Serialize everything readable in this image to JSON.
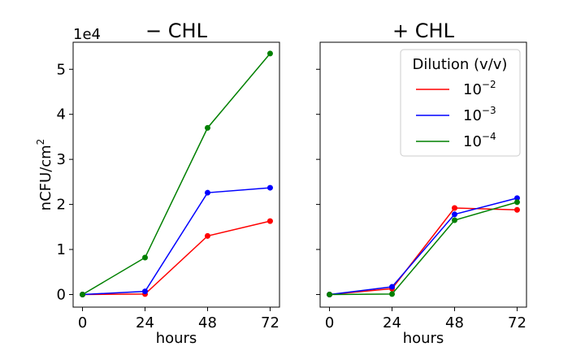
{
  "chart_data": [
    {
      "type": "line",
      "title": "− CHL",
      "xlabel": "hours",
      "ylabel": "nCFU/cm",
      "ylabel_superscript": "2",
      "offset_label": "1e4",
      "x": [
        0,
        24,
        48,
        72
      ],
      "xticks": [
        "0",
        "24",
        "48",
        "72"
      ],
      "yticks": [
        "0",
        "1",
        "2",
        "3",
        "4",
        "5"
      ],
      "ylim": [
        -0.28,
        5.6
      ],
      "grid": false,
      "series": [
        {
          "color": "#ff0000",
          "values": [
            0,
            0.01,
            1.3,
            1.63
          ]
        },
        {
          "color": "#0000ff",
          "values": [
            0,
            0.07,
            2.26,
            2.37
          ]
        },
        {
          "color": "#008000",
          "values": [
            0,
            0.82,
            3.7,
            5.35
          ]
        }
      ]
    },
    {
      "type": "line",
      "title": "+ CHL",
      "xlabel": "hours",
      "x": [
        0,
        24,
        48,
        72
      ],
      "xticks": [
        "0",
        "24",
        "48",
        "72"
      ],
      "ylim": [
        -0.28,
        5.6
      ],
      "grid": false,
      "legend": {
        "title": "Dilution (v/v)",
        "placement": "top-right",
        "entries": [
          {
            "base": "10",
            "exponent": "−2",
            "color": "#ff0000"
          },
          {
            "base": "10",
            "exponent": "−3",
            "color": "#0000ff"
          },
          {
            "base": "10",
            "exponent": "−4",
            "color": "#008000"
          }
        ]
      },
      "series": [
        {
          "color": "#ff0000",
          "values": [
            0,
            0.13,
            1.92,
            1.88
          ]
        },
        {
          "color": "#0000ff",
          "values": [
            0,
            0.17,
            1.78,
            2.14
          ]
        },
        {
          "color": "#008000",
          "values": [
            0,
            0.01,
            1.65,
            2.05
          ]
        }
      ]
    }
  ]
}
